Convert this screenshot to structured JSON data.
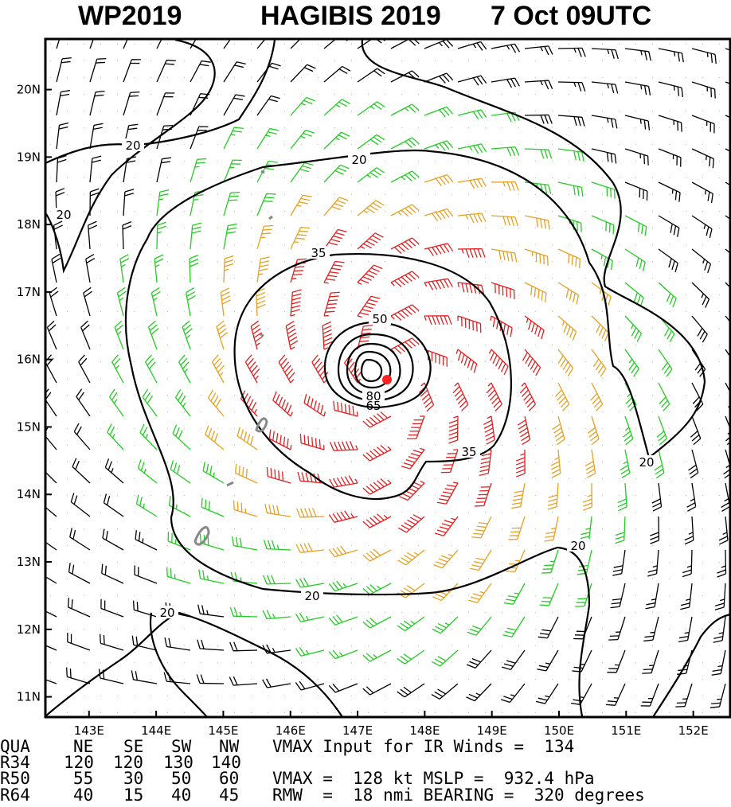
{
  "header": {
    "basin": "WP2019",
    "storm": "HAGIBIS 2019",
    "time": "7 Oct 09UTC"
  },
  "chart_data": {
    "type": "wind_barb_map",
    "x_axis": {
      "ticks": [
        "143E",
        "144E",
        "145E",
        "146E",
        "147E",
        "148E",
        "149E",
        "150E",
        "151E",
        "152E"
      ],
      "lon_range": [
        142.35,
        152.55
      ]
    },
    "y_axis": {
      "ticks": [
        "11N",
        "12N",
        "13N",
        "14N",
        "15N",
        "16N",
        "17N",
        "18N",
        "19N",
        "20N"
      ],
      "lat_range": [
        10.7,
        20.75
      ]
    },
    "center": {
      "lon": 147.5,
      "lat": 15.7
    },
    "contour_labels": [
      "20",
      "20",
      "20",
      "20",
      "20",
      "20",
      "20",
      "35",
      "35",
      "50",
      "65",
      "80"
    ],
    "wind_speed_colors": {
      "lt_20kt": "#000000",
      "20_to_35kt": "#22cc22",
      "35_to_50kt": "#e8a020",
      "gt_50kt": "#e02020"
    },
    "center_marker_color": "#ff2020"
  },
  "table": {
    "head": [
      "QUA",
      "NE",
      "SE",
      "SW",
      "NW"
    ],
    "rows": [
      [
        "R34",
        "120",
        "120",
        "130",
        "140"
      ],
      [
        "R50",
        "55",
        "30",
        "50",
        "60"
      ],
      [
        "R64",
        "40",
        "15",
        "40",
        "45"
      ]
    ],
    "line1": "VMAX Input for IR Winds =  134",
    "line2": "VMAX =  128 kt MSLP =  932.4 hPa",
    "line3": "RMW  =  18 nmi BEARING =  320 degrees"
  }
}
